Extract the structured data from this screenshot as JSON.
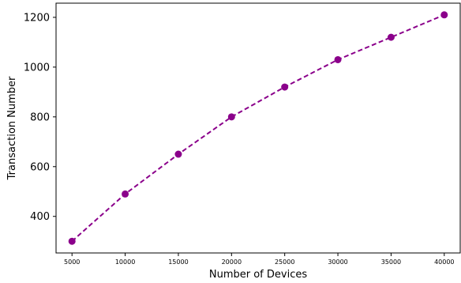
{
  "chart_data": {
    "type": "line",
    "title": "",
    "xlabel": "Number of Devices",
    "ylabel": "Transaction Number",
    "x": [
      5000,
      10000,
      15000,
      20000,
      25000,
      30000,
      35000,
      40000
    ],
    "series": [
      {
        "values": [
          300,
          490,
          650,
          800,
          920,
          1030,
          1120,
          1210
        ],
        "color": "#8b008b",
        "line_style": "dashed",
        "marker": "circle"
      }
    ],
    "x_ticks": [
      "5000",
      "10000",
      "15000",
      "20000",
      "25000",
      "30000",
      "35000",
      "40000"
    ],
    "y_ticks": [
      "400",
      "600",
      "800",
      "1000",
      "1200"
    ],
    "xlim": [
      3500,
      41500
    ],
    "ylim": [
      253,
      1257
    ],
    "grid": false,
    "legend": "none"
  }
}
